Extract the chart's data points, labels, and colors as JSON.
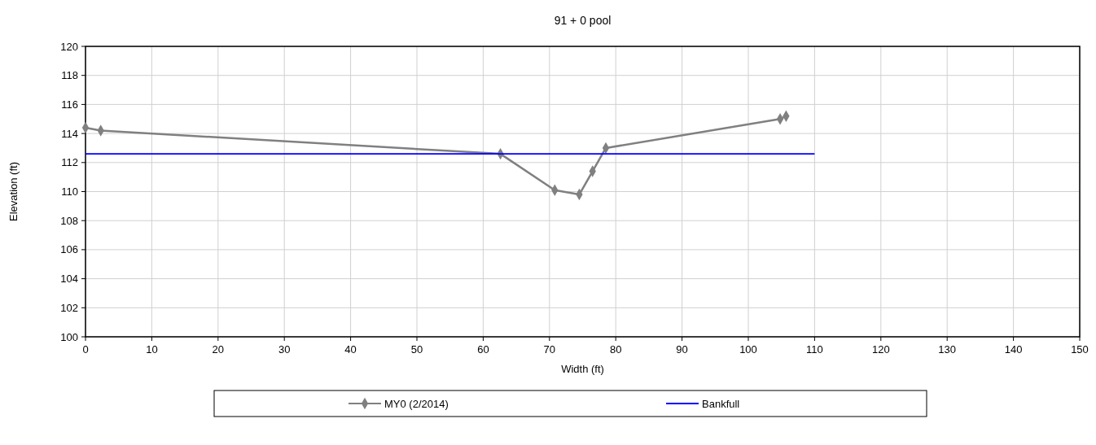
{
  "chart_data": {
    "type": "line",
    "title": "91 + 0      pool",
    "xlabel": "Width (ft)",
    "ylabel": "Elevation (ft)",
    "xlim": [
      0,
      150
    ],
    "xticks": [
      0,
      10,
      20,
      30,
      40,
      50,
      60,
      70,
      80,
      90,
      100,
      110,
      120,
      130,
      140,
      150
    ],
    "ylim": [
      100,
      120
    ],
    "yticks": [
      100,
      102,
      104,
      106,
      108,
      110,
      112,
      114,
      116,
      118,
      120
    ],
    "grid": true,
    "legend": "bottom",
    "series": [
      {
        "name": "MY0 (2/2014)",
        "color": "#808080",
        "marker": "diamond",
        "x": [
          0,
          2.3,
          62.6,
          70.8,
          74.5,
          76.5,
          78.5,
          104.8,
          105.7
        ],
        "values": [
          114.4,
          114.2,
          112.6,
          110.1,
          109.8,
          111.4,
          113.0,
          115.0,
          115.2
        ]
      },
      {
        "name": "Bankfull",
        "color": "#0000ff",
        "marker": "none",
        "x": [
          0,
          110
        ],
        "values": [
          112.6,
          112.6
        ]
      }
    ]
  }
}
